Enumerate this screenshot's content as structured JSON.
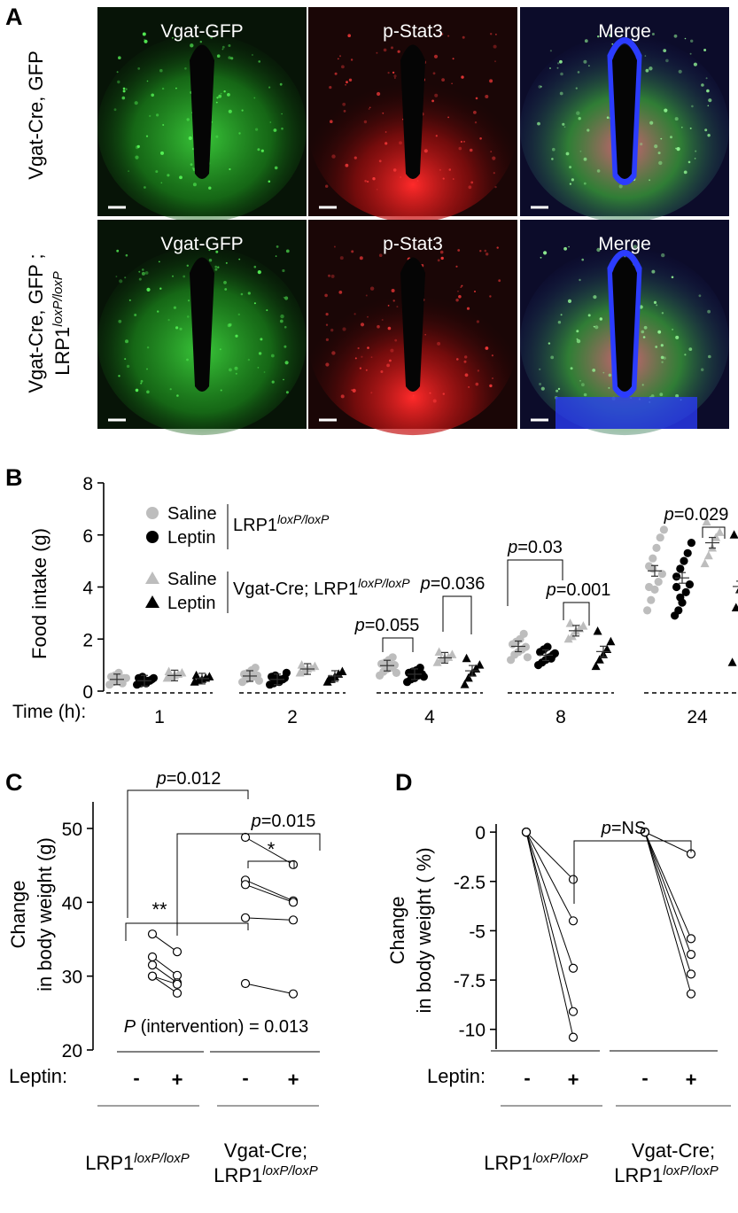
{
  "panelA": {
    "letter": "A",
    "rows": [
      {
        "label_html": "Vgat-Cre, GFP",
        "labels": [
          "Vgat-Cre, GFP"
        ]
      },
      {
        "labels": [
          "Vgat-Cre, GFP ;",
          "LRP1"
        ],
        "sup": "loxP/loxP"
      }
    ],
    "columns": [
      "Vgat-GFP",
      "p-Stat3",
      "Merge"
    ],
    "colors": {
      "gfp": "#2db82d",
      "pstat": "#e81e1e",
      "merge_blue": "#2b3cff"
    }
  },
  "panelB": {
    "letter": "B",
    "ylabel": "Food intake (g)",
    "time_label": "Time (h):",
    "legend": {
      "items": [
        "Saline",
        "Leptin",
        "Saline",
        "Leptin"
      ],
      "group1": "LRP1",
      "group1_sup": "loxP/loxP",
      "group2": "Vgat-Cre; LRP1",
      "group2_sup": "loxP/loxP"
    },
    "annotations": [
      "p=0.055",
      "p=0.036",
      "p=0.03",
      "p=0.001",
      "p=0.029"
    ]
  },
  "panelC": {
    "letter": "C",
    "ylabel1": "Change",
    "ylabel2": "in body weight (g)",
    "p_top": "p=0.012",
    "p_mid": "p=0.015",
    "sig_left": "**",
    "sig_right": "*",
    "p_interv": "P (intervention) = 0.013",
    "leptin_label": "Leptin:",
    "minus": "-",
    "plus": "+",
    "group1": "LRP1",
    "group1_sup": "loxP/loxP",
    "group2a": "Vgat-Cre;",
    "group2b": "LRP1",
    "group2b_sup": "loxP/loxP"
  },
  "panelD": {
    "letter": "D",
    "ylabel1": "Change",
    "ylabel2": "in body weight ( %)",
    "p_ns": "p=NS",
    "leptin_label": "Leptin:",
    "minus": "-",
    "plus": "+",
    "group1": "LRP1",
    "group1_sup": "loxP/loxP",
    "group2a": "Vgat-Cre;",
    "group2b": "LRP1",
    "group2b_sup": "loxP/loxP"
  },
  "chart_data": [
    {
      "type": "scatter",
      "panel": "B",
      "ylabel": "Food intake (g)",
      "ylim": [
        0,
        8
      ],
      "yticks": [
        0,
        2,
        4,
        6,
        8
      ],
      "categories": [
        "1",
        "2",
        "4",
        "8",
        "24"
      ],
      "series": [
        {
          "name": "Saline (LRP1 loxP/loxP)",
          "marker": "circle",
          "color": "#bdbdbd",
          "means": [
            0.45,
            0.58,
            0.98,
            1.72,
            4.62
          ],
          "points": [
            [
              0.25,
              0.35,
              0.4,
              0.45,
              0.5,
              0.55,
              0.6,
              0.7,
              0.3,
              0.5
            ],
            [
              0.35,
              0.45,
              0.5,
              0.55,
              0.6,
              0.65,
              0.7,
              0.8,
              0.9,
              0.4
            ],
            [
              0.6,
              0.75,
              0.85,
              0.9,
              1.0,
              1.05,
              1.1,
              1.2,
              1.3,
              0.7
            ],
            [
              1.2,
              1.4,
              1.5,
              1.6,
              1.7,
              1.8,
              1.9,
              2.0,
              2.2,
              1.3
            ],
            [
              3.1,
              3.5,
              3.9,
              4.2,
              4.5,
              4.8,
              5.1,
              5.5,
              5.9,
              6.2,
              4.0,
              4.7
            ]
          ]
        },
        {
          "name": "Leptin (LRP1 loxP/loxP)",
          "marker": "circle",
          "color": "#000000",
          "means": [
            0.4,
            0.45,
            0.65,
            1.38,
            4.35
          ],
          "points": [
            [
              0.25,
              0.3,
              0.35,
              0.4,
              0.45,
              0.5,
              0.55,
              0.3,
              0.4,
              0.5
            ],
            [
              0.25,
              0.3,
              0.4,
              0.45,
              0.5,
              0.55,
              0.6,
              0.35,
              0.45,
              0.7
            ],
            [
              0.35,
              0.45,
              0.5,
              0.6,
              0.65,
              0.7,
              0.75,
              0.8,
              0.9,
              0.55
            ],
            [
              1.0,
              1.1,
              1.2,
              1.3,
              1.4,
              1.5,
              1.6,
              1.7,
              1.25,
              1.45
            ],
            [
              2.9,
              3.1,
              3.4,
              3.8,
              4.1,
              4.4,
              4.7,
              5.0,
              5.3,
              5.7,
              4.0,
              3.6
            ]
          ]
        },
        {
          "name": "Saline (Vgat-Cre; LRP1 loxP/loxP)",
          "marker": "triangle",
          "color": "#bdbdbd",
          "means": [
            0.6,
            0.85,
            1.28,
            2.32,
            5.7
          ],
          "points": [
            [
              0.5,
              0.55,
              0.6,
              0.65,
              0.7,
              0.75
            ],
            [
              0.7,
              0.75,
              0.85,
              0.9,
              0.95,
              1.0
            ],
            [
              1.1,
              1.2,
              1.25,
              1.3,
              1.4,
              1.5
            ],
            [
              2.0,
              2.1,
              2.3,
              2.4,
              2.5,
              2.6
            ],
            [
              4.9,
              5.2,
              5.5,
              5.9,
              6.1,
              6.5
            ]
          ]
        },
        {
          "name": "Leptin (Vgat-Cre; LRP1 loxP/loxP)",
          "marker": "triangle",
          "color": "#000000",
          "means": [
            0.48,
            0.58,
            0.78,
            1.52,
            4.02
          ],
          "points": [
            [
              0.35,
              0.4,
              0.45,
              0.5,
              0.55,
              0.6
            ],
            [
              0.35,
              0.45,
              0.55,
              0.65,
              0.75,
              0.45
            ],
            [
              0.25,
              0.5,
              0.7,
              0.85,
              1.0,
              1.25
            ],
            [
              0.95,
              1.2,
              1.4,
              1.6,
              1.9,
              2.3
            ],
            [
              1.1,
              3.2,
              3.9,
              4.3,
              5.1,
              6.0
            ]
          ]
        }
      ]
    },
    {
      "type": "line",
      "panel": "C",
      "ylabel": "Change in body weight (g)",
      "ylim": [
        20,
        50
      ],
      "yticks": [
        20,
        30,
        40,
        50
      ],
      "groups": [
        {
          "name": "LRP1 loxP/loxP",
          "pairs": [
            [
              35.7,
              33.3
            ],
            [
              32.6,
              30.1
            ],
            [
              31.5,
              29.1
            ],
            [
              30.0,
              28.9
            ],
            [
              30.0,
              27.7
            ]
          ]
        },
        {
          "name": "Vgat-Cre; LRP1 loxP/loxP",
          "pairs": [
            [
              48.8,
              45.1
            ],
            [
              43.0,
              40.2
            ],
            [
              42.4,
              40.0
            ],
            [
              37.9,
              37.6
            ],
            [
              29.0,
              27.6
            ]
          ]
        }
      ]
    },
    {
      "type": "line",
      "panel": "D",
      "ylabel": "Change in body weight ( %)",
      "ylim": [
        -11,
        0.5
      ],
      "yticks": [
        0,
        -2.5,
        -5,
        -7.5,
        -10
      ],
      "ytick_labels": [
        "0",
        "-2.5",
        "-5",
        "-7.5",
        "-10"
      ],
      "groups": [
        {
          "name": "LRP1 loxP/loxP",
          "pairs": [
            [
              0,
              -2.4
            ],
            [
              0,
              -4.5
            ],
            [
              0,
              -6.9
            ],
            [
              0,
              -9.1
            ],
            [
              0,
              -10.4
            ]
          ]
        },
        {
          "name": "Vgat-Cre; LRP1 loxP/loxP",
          "pairs": [
            [
              0,
              -1.1
            ],
            [
              0,
              -5.4
            ],
            [
              0,
              -6.2
            ],
            [
              0,
              -7.2
            ],
            [
              0,
              -8.2
            ]
          ]
        }
      ]
    }
  ]
}
